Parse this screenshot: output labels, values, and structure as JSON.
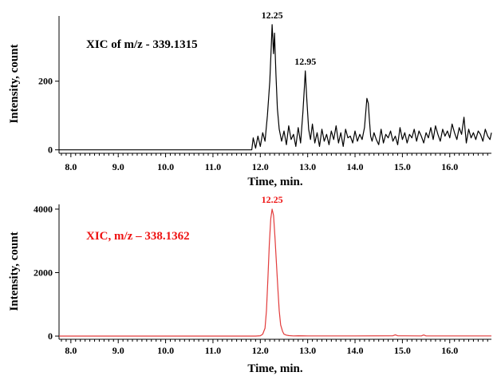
{
  "chart_data": [
    {
      "type": "line",
      "title": "XIC of m/z - 339.1315",
      "title_color": "#000000",
      "line_color": "#000000",
      "xlabel": "Time, min.",
      "ylabel": "Intensity, count",
      "xlim": [
        7.75,
        16.88
      ],
      "ylim": [
        -10,
        390
      ],
      "x_ticks": [
        "8.0",
        "9.0",
        "10.0",
        "11.0",
        "12.0",
        "13.0",
        "14.0",
        "15.0",
        "16.0"
      ],
      "y_ticks": [
        {
          "value": 0,
          "label": "0"
        },
        {
          "value": 200,
          "label": "200"
        }
      ],
      "peak_labels": [
        {
          "x": 12.25,
          "y": 365,
          "label": "12.25"
        },
        {
          "x": 12.95,
          "y": 230,
          "label": "12.95"
        }
      ],
      "series": [
        {
          "x": [
            7.75,
            11.82,
            11.85,
            11.9,
            11.95,
            12.0,
            12.05,
            12.1,
            12.15,
            12.2,
            12.23,
            12.25,
            12.28,
            12.3,
            12.33,
            12.36,
            12.4,
            12.45,
            12.5,
            12.55,
            12.6,
            12.65,
            12.7,
            12.75,
            12.8,
            12.85,
            12.9,
            12.93,
            12.95,
            12.98,
            13.02,
            13.06,
            13.1,
            13.15,
            13.2,
            13.25,
            13.3,
            13.35,
            13.4,
            13.45,
            13.5,
            13.55,
            13.6,
            13.65,
            13.7,
            13.75,
            13.8,
            13.85,
            13.9,
            13.95,
            14.0,
            14.05,
            14.1,
            14.15,
            14.2,
            14.25,
            14.28,
            14.3,
            14.33,
            14.36,
            14.4,
            14.45,
            14.5,
            14.55,
            14.6,
            14.65,
            14.7,
            14.75,
            14.8,
            14.85,
            14.9,
            14.95,
            15.0,
            15.05,
            15.1,
            15.15,
            15.2,
            15.25,
            15.3,
            15.35,
            15.4,
            15.45,
            15.5,
            15.55,
            15.6,
            15.65,
            15.7,
            15.75,
            15.8,
            15.85,
            15.9,
            15.95,
            16.0,
            16.05,
            16.1,
            16.15,
            16.2,
            16.25,
            16.3,
            16.35,
            16.4,
            16.45,
            16.5,
            16.55,
            16.6,
            16.65,
            16.7,
            16.75,
            16.8,
            16.85,
            16.88
          ],
          "y": [
            0,
            0,
            35,
            5,
            40,
            10,
            50,
            25,
            100,
            200,
            300,
            365,
            280,
            340,
            220,
            120,
            60,
            25,
            55,
            15,
            70,
            30,
            45,
            10,
            65,
            20,
            110,
            180,
            230,
            150,
            60,
            30,
            75,
            20,
            50,
            10,
            60,
            25,
            45,
            15,
            55,
            30,
            70,
            20,
            50,
            10,
            60,
            35,
            40,
            20,
            55,
            25,
            45,
            30,
            65,
            150,
            135,
            95,
            40,
            25,
            50,
            30,
            15,
            60,
            20,
            45,
            35,
            55,
            25,
            40,
            15,
            65,
            30,
            50,
            20,
            45,
            35,
            60,
            25,
            55,
            40,
            20,
            50,
            35,
            65,
            30,
            70,
            45,
            25,
            60,
            40,
            55,
            35,
            75,
            50,
            30,
            65,
            45,
            95,
            20,
            60,
            35,
            50,
            30,
            55,
            45,
            25,
            60,
            40,
            30,
            50
          ]
        }
      ]
    },
    {
      "type": "line",
      "title": "XIC, m/z – 338.1362",
      "title_color": "#ee1111",
      "line_color": "#e23b3b",
      "xlabel": "Time, min.",
      "ylabel": "Intensity, count",
      "xlim": [
        7.75,
        16.88
      ],
      "ylim": [
        -100,
        4150
      ],
      "x_ticks": [
        "8.0",
        "9.0",
        "10.0",
        "11.0",
        "12.0",
        "13.0",
        "14.0",
        "15.0",
        "16.0"
      ],
      "y_ticks": [
        {
          "value": 0,
          "label": "0"
        },
        {
          "value": 2000,
          "label": "2000"
        },
        {
          "value": 4000,
          "label": "4000"
        }
      ],
      "peak_labels": [
        {
          "x": 12.25,
          "y": 4000,
          "label": "12.25"
        }
      ],
      "series": [
        {
          "x": [
            7.75,
            11.9,
            12.0,
            12.05,
            12.1,
            12.13,
            12.16,
            12.19,
            12.22,
            12.25,
            12.28,
            12.31,
            12.34,
            12.37,
            12.4,
            12.43,
            12.47,
            12.5,
            12.55,
            12.6,
            12.7,
            12.8,
            13.0,
            14.0,
            14.8,
            14.85,
            14.9,
            15.4,
            15.45,
            15.5,
            16.88
          ],
          "y": [
            0,
            0,
            10,
            60,
            250,
            800,
            1800,
            2900,
            3700,
            4000,
            3800,
            3100,
            2300,
            1500,
            800,
            350,
            150,
            60,
            30,
            15,
            5,
            10,
            5,
            5,
            10,
            40,
            10,
            5,
            35,
            5,
            5
          ]
        }
      ]
    }
  ]
}
